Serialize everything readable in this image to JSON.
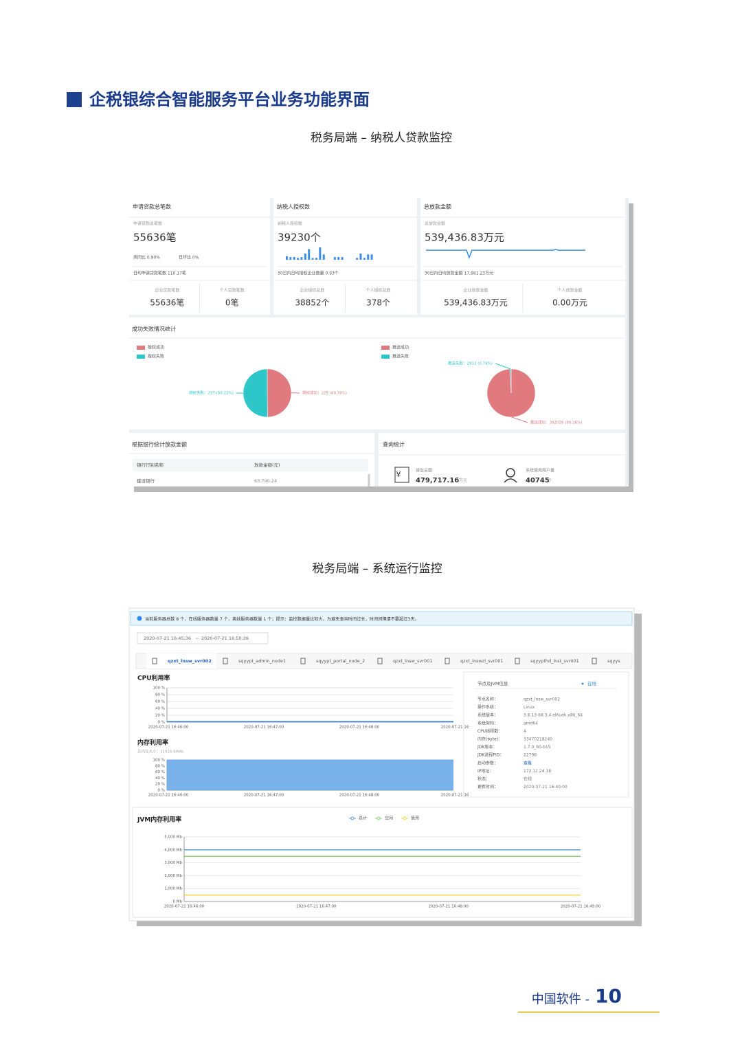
{
  "heading": "企税银综合智能服务平台业务功能界面",
  "captions": [
    "税务局端 – 纳税人贷款监控",
    "税务局端 – 系统运行监控"
  ],
  "loan": {
    "cards": [
      {
        "title": "申请贷款总笔数",
        "subtitle": "申请贷款总笔数",
        "total": "55636笔",
        "growth": [
          "周同比 0.90%",
          "日环比 0%"
        ],
        "daily": "日均申请贷款笔数 110.17笔",
        "split": [
          {
            "label": "企业贷款笔数",
            "value": "55636笔"
          },
          {
            "label": "个人贷款笔数",
            "value": "0笔"
          }
        ]
      },
      {
        "title": "纳税人授权数",
        "subtitle": "纳税人授权数",
        "total": "39230个",
        "daily": "30日内日均授权企业数量 0.93个",
        "split": [
          {
            "label": "企业授权总数",
            "value": "38852个"
          },
          {
            "label": "个人授权总数",
            "value": "378个"
          }
        ],
        "spark": [
          4,
          3,
          3,
          2,
          3,
          7,
          12,
          2,
          2,
          14,
          6,
          0,
          0,
          3,
          3,
          3,
          0,
          0,
          0,
          2,
          7,
          2,
          6,
          6
        ],
        "spark_ylim": [
          0,
          14
        ],
        "spark_color": "#3a8ee6"
      },
      {
        "title": "总放款金额",
        "subtitle": "总放款金额",
        "total": "539,436.83万元",
        "daily": "30日内日均放款金额 17,981.23万元",
        "split": [
          {
            "label": "企业放款金额",
            "value": "539,436.83万元"
          },
          {
            "label": "个人放款金额",
            "value": "0.00万元"
          }
        ],
        "spark": [
          10,
          10,
          10,
          10,
          10,
          10,
          10,
          10,
          10,
          10,
          10,
          10,
          10,
          10,
          10,
          10,
          0,
          10,
          10,
          10,
          10,
          10,
          10,
          10,
          10,
          10,
          10,
          10,
          10,
          10,
          10,
          10,
          10,
          10,
          10,
          10,
          10,
          10,
          10,
          10,
          10,
          10,
          10,
          10,
          10,
          10,
          10,
          10,
          11,
          10,
          10,
          10,
          10,
          10,
          10,
          10,
          10,
          10,
          10,
          10
        ],
        "spark_ylim": [
          0,
          11
        ],
        "spark_color": "#3a8ee6"
      }
    ],
    "pie_title": "成功失败情况统计",
    "pies": [
      {
        "type": "pie",
        "slices": [
          {
            "name": "授权成功",
            "value": 225,
            "label": "授权成功：225 (49.78%)",
            "color": "#e07a7f"
          },
          {
            "name": "授权失败",
            "value": 227,
            "label": "授权失败：227 (50.22%)",
            "color": "#2ec7c9"
          }
        ]
      },
      {
        "type": "pie",
        "slices": [
          {
            "name": "推送成功",
            "value": 392026,
            "label": "推送成功：392026 (99.26%)",
            "color": "#e07a7f"
          },
          {
            "name": "推送失败",
            "value": 2912,
            "label": "推送失败：2912 (0.74%)",
            "color": "#2ec7c9"
          }
        ]
      }
    ],
    "bank": {
      "title": "根据银行统计放款金额",
      "headers": [
        "银行行别名称",
        "放款金额(元)"
      ],
      "rows": [
        [
          "建设银行",
          "63,790.24"
        ]
      ]
    },
    "query": {
      "title": "查询统计",
      "items": [
        {
          "label": "接信总额",
          "value": "479,717.16",
          "unit": "万元"
        },
        {
          "label": "系统使用用户量",
          "value": "40745",
          "unit": "个"
        }
      ]
    }
  },
  "monitor": {
    "notice": "当前服务器总数 8 个，在线服务器数量 7 个，离线服务器数量 1 个；提示：监控数据量比较大，为避免查询时间过长，时间间隔请不要超过3天。",
    "date_from": "2020-07-21 16:45:36",
    "date_sep": "~",
    "date_to": "2020-07-21 16:50:36",
    "tabs": [
      "qzxt_lnsw_svr002",
      "sqyypt_admin_node1",
      "sqyypt_portal_node_2",
      "qzxt_lnsw_svr001",
      "qzxt_lnswzl_svr001",
      "sqyypthd_lnst_svr001",
      "sqyys"
    ],
    "cpu": {
      "type": "line",
      "title": "CPU利用率",
      "categories": [
        "2020-07-21 16:46:00",
        "2020-07-21 16:47:00",
        "2020-07-21 16:48:00",
        "2020-07-21 16"
      ],
      "values": [
        2,
        2,
        2,
        2
      ],
      "color": "#3a8ee6",
      "ylim": [
        0,
        100
      ],
      "yticks": [
        {
          "value": 0,
          "label": "0 %"
        },
        {
          "value": 20,
          "label": "20 %"
        },
        {
          "value": 40,
          "label": "40 %"
        },
        {
          "value": 60,
          "label": "60 %"
        },
        {
          "value": 80,
          "label": "80 %"
        },
        {
          "value": 100,
          "label": "100 %"
        }
      ]
    },
    "memory": {
      "type": "area",
      "title": "内存利用率",
      "subtitle": "总内存大小：31919.69Mb",
      "categories": [
        "2020-07-21 16:46:00",
        "2020-07-21 16:47:00",
        "2020-07-21 16:48:00",
        "2020-07-21 16"
      ],
      "values": [
        99,
        99,
        99,
        99
      ],
      "color": "#6aa8e8",
      "ylim": [
        0,
        100
      ],
      "yticks": [
        {
          "value": 0,
          "label": "0 %"
        },
        {
          "value": 20,
          "label": "20 %"
        },
        {
          "value": 40,
          "label": "40 %"
        },
        {
          "value": 60,
          "label": "60 %"
        },
        {
          "value": 80,
          "label": "80 %"
        },
        {
          "value": 100,
          "label": "100 %"
        }
      ]
    },
    "jvm": {
      "type": "line",
      "title": "JVM内存利用率",
      "categories": [
        "2020-07-21 16:46:00",
        "2020-07-21 16:47:00",
        "2020-07-21 16:48:00",
        "2020-07-21 16:49:00"
      ],
      "ylim": [
        0,
        5000
      ],
      "yticks": [
        {
          "value": 0,
          "label": "0 Mb"
        },
        {
          "value": 1000,
          "label": "1,000 Mb"
        },
        {
          "value": 2000,
          "label": "2,000 Mb"
        },
        {
          "value": 3000,
          "label": "3,000 Mb"
        },
        {
          "value": 4000,
          "label": "4,000 Mb"
        },
        {
          "value": 5000,
          "label": "5,000 Mb"
        }
      ],
      "series": [
        {
          "name": "总计",
          "color": "#5b9bd5",
          "values": [
            4000,
            4000,
            4000,
            4000
          ]
        },
        {
          "name": "空闲",
          "color": "#91cc75",
          "values": [
            3500,
            3500,
            3500,
            3500
          ]
        },
        {
          "name": "使用",
          "color": "#f5d44a",
          "values": [
            500,
            500,
            500,
            500
          ]
        }
      ]
    },
    "info": {
      "title": "节点及JVM信息",
      "status": "在线",
      "rows": [
        [
          "节点名称：",
          "qzxt_lnsw_svr002"
        ],
        [
          "操作系统：",
          "Linux"
        ],
        [
          "系统版本：",
          "3.8.13-68.3.4.el6uek.x86_64"
        ],
        [
          "系统架构：",
          "amd64"
        ],
        [
          "CPU线程数：",
          "4"
        ],
        [
          "内存(byte)：",
          "33470218240"
        ],
        [
          "JDK版本：",
          "1.7.0_80-b15"
        ],
        [
          "JDK进程PID：",
          "22798"
        ],
        [
          "启动参数：",
          "查看"
        ],
        [
          "IP地址：",
          "172.12.24.18"
        ],
        [
          "状态：",
          "在线"
        ],
        [
          "更新时间：",
          "2020-07-21 16:40:00"
        ]
      ]
    }
  },
  "footer": {
    "brand": "中国软件 -",
    "page": "10"
  }
}
